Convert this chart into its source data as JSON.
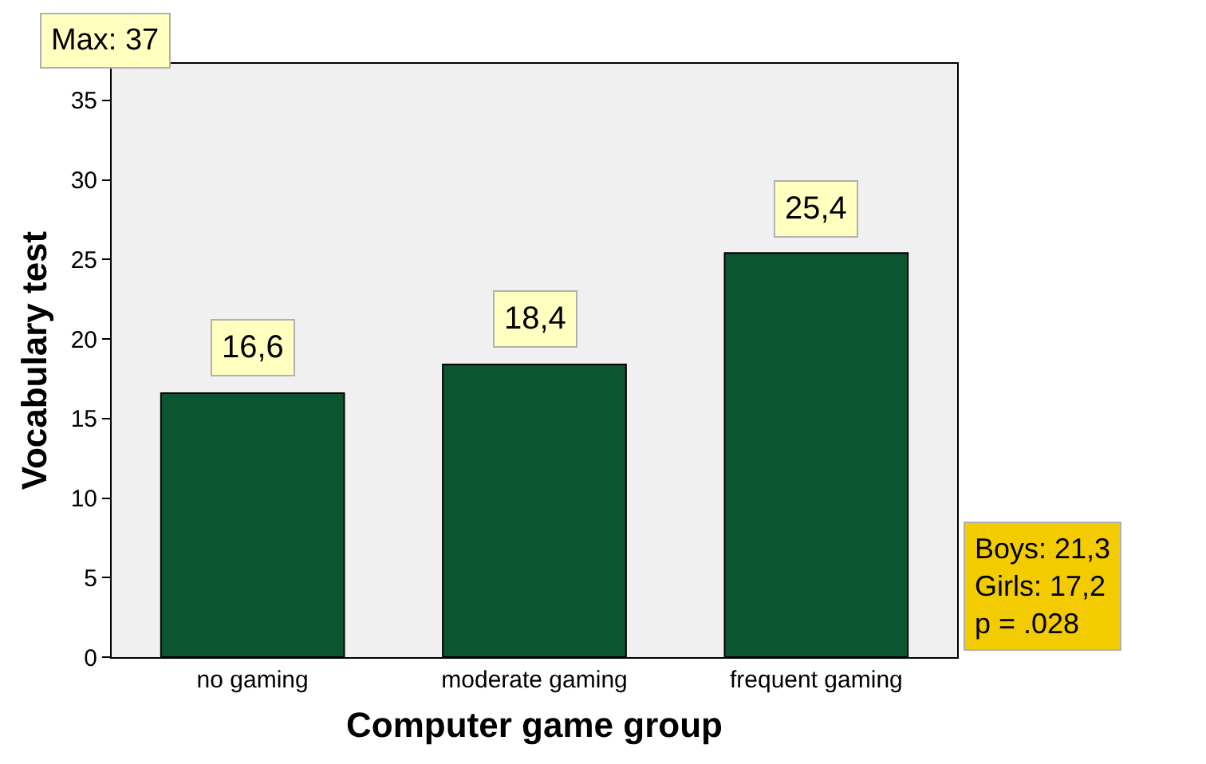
{
  "chart_data": {
    "type": "bar",
    "xlabel": "Computer game group",
    "ylabel": "Vocabulary test",
    "categories": [
      "no gaming",
      "moderate gaming",
      "frequent gaming"
    ],
    "values": [
      16.6,
      18.4,
      25.4
    ],
    "value_labels": [
      "16,6",
      "18,4",
      "25,4"
    ],
    "color": "#0b5630",
    "ylim": [
      0,
      37.3
    ],
    "yticks": [
      0,
      5,
      10,
      15,
      20,
      25,
      30,
      35
    ],
    "grid": false,
    "annotations": [
      "Max: 37",
      "Boys: 21,3\nGirls: 17,2\np = .028"
    ]
  }
}
